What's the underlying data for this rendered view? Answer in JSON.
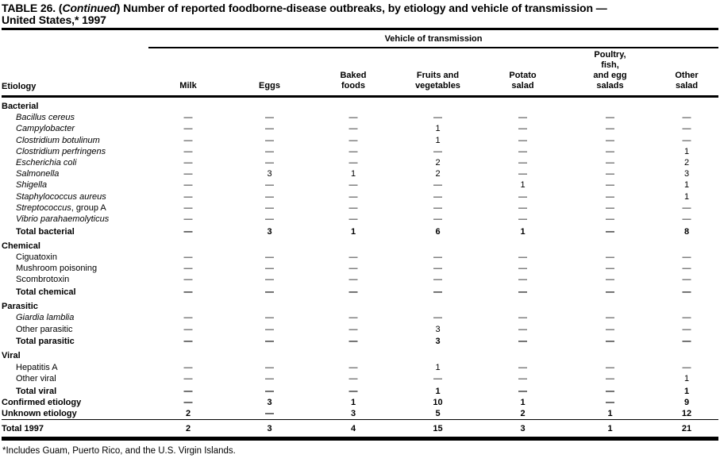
{
  "title": {
    "part1": "TABLE 26. (",
    "continued": "Continued",
    "part2": ") Number of reported foodborne-disease outbreaks, by etiology and vehicle of transmission —\nUnited States,* 1997"
  },
  "table": {
    "group_header": "Vehicle of transmission",
    "row_header": "Etiology",
    "columns": [
      "Milk",
      "Eggs",
      "Baked\nfoods",
      "Fruits and\nvegetables",
      "Potato\nsalad",
      "Poultry,\nfish,\nand egg\nsalads",
      "Other\nsalad"
    ],
    "sections": [
      {
        "name": "Bacterial",
        "rows": [
          {
            "label_italic": "Bacillus cereus",
            "label": "",
            "values": [
              "—",
              "—",
              "—",
              "—",
              "—",
              "—",
              "—"
            ]
          },
          {
            "label_italic": "Campylobacter",
            "label": "",
            "values": [
              "—",
              "—",
              "—",
              "1",
              "—",
              "—",
              "—"
            ]
          },
          {
            "label_italic": "Clostridium botulinum",
            "label": "",
            "values": [
              "—",
              "—",
              "—",
              "1",
              "—",
              "—",
              "—"
            ]
          },
          {
            "label_italic": "Clostridium perfringens",
            "label": "",
            "values": [
              "—",
              "—",
              "—",
              "—",
              "—",
              "—",
              "1"
            ]
          },
          {
            "label_italic": "Escherichia coli",
            "label": "",
            "values": [
              "—",
              "—",
              "—",
              "2",
              "—",
              "—",
              "2"
            ]
          },
          {
            "label_italic": "Salmonella",
            "label": "",
            "values": [
              "—",
              "3",
              "1",
              "2",
              "—",
              "—",
              "3"
            ]
          },
          {
            "label_italic": "Shigella",
            "label": "",
            "values": [
              "—",
              "—",
              "—",
              "—",
              "1",
              "—",
              "1"
            ]
          },
          {
            "label_italic": "Staphylococcus aureus",
            "label": "",
            "values": [
              "—",
              "—",
              "—",
              "—",
              "—",
              "—",
              "1"
            ]
          },
          {
            "label_italic": "Streptococcus",
            "label": ", group A",
            "values": [
              "—",
              "—",
              "—",
              "—",
              "—",
              "—",
              "—"
            ]
          },
          {
            "label_italic": "Vibrio parahaemolyticus",
            "label": "",
            "values": [
              "—",
              "—",
              "—",
              "—",
              "—",
              "—",
              "—"
            ]
          }
        ],
        "total": {
          "label": "Total bacterial",
          "values": [
            "—",
            "3",
            "1",
            "6",
            "1",
            "—",
            "8"
          ]
        }
      },
      {
        "name": "Chemical",
        "rows": [
          {
            "label": "Ciguatoxin",
            "values": [
              "—",
              "—",
              "—",
              "—",
              "—",
              "—",
              "—"
            ]
          },
          {
            "label": "Mushroom poisoning",
            "values": [
              "—",
              "—",
              "—",
              "—",
              "—",
              "—",
              "—"
            ]
          },
          {
            "label": "Scombrotoxin",
            "values": [
              "—",
              "—",
              "—",
              "—",
              "—",
              "—",
              "—"
            ]
          }
        ],
        "total": {
          "label": "Total chemical",
          "values": [
            "—",
            "—",
            "—",
            "—",
            "—",
            "—",
            "—"
          ]
        }
      },
      {
        "name": "Parasitic",
        "rows": [
          {
            "label_italic": "Giardia lamblia",
            "label": "",
            "values": [
              "—",
              "—",
              "—",
              "—",
              "—",
              "—",
              "—"
            ]
          },
          {
            "label": "Other parasitic",
            "values": [
              "—",
              "—",
              "—",
              "3",
              "—",
              "—",
              "—"
            ]
          }
        ],
        "total": {
          "label": "Total parasitic",
          "values": [
            "—",
            "—",
            "—",
            "3",
            "—",
            "—",
            "—"
          ]
        }
      },
      {
        "name": "Viral",
        "rows": [
          {
            "label": "Hepatitis A",
            "values": [
              "—",
              "—",
              "—",
              "1",
              "—",
              "—",
              "—"
            ]
          },
          {
            "label": "Other viral",
            "values": [
              "—",
              "—",
              "—",
              "—",
              "—",
              "—",
              "1"
            ]
          }
        ],
        "total": {
          "label": "Total viral",
          "values": [
            "—",
            "—",
            "—",
            "1",
            "—",
            "—",
            "1"
          ]
        }
      }
    ],
    "summary_rows": [
      {
        "label": "Confirmed etiology",
        "values": [
          "—",
          "3",
          "1",
          "10",
          "1",
          "—",
          "9"
        ]
      },
      {
        "label": "Unknown etiology",
        "values": [
          "2",
          "—",
          "3",
          "5",
          "2",
          "1",
          "12"
        ]
      }
    ],
    "grand_total": {
      "label": "Total 1997",
      "values": [
        "2",
        "3",
        "4",
        "15",
        "3",
        "1",
        "21"
      ]
    }
  },
  "footnote": "*Includes Guam, Puerto Rico, and the U.S. Virgin Islands."
}
